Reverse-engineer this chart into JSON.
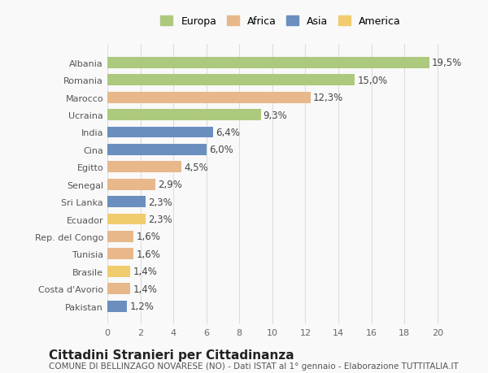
{
  "countries": [
    "Albania",
    "Romania",
    "Marocco",
    "Ucraina",
    "India",
    "Cina",
    "Egitto",
    "Senegal",
    "Sri Lanka",
    "Ecuador",
    "Rep. del Congo",
    "Tunisia",
    "Brasile",
    "Costa d'Avorio",
    "Pakistan"
  ],
  "values": [
    19.5,
    15.0,
    12.3,
    9.3,
    6.4,
    6.0,
    4.5,
    2.9,
    2.3,
    2.3,
    1.6,
    1.6,
    1.4,
    1.4,
    1.2
  ],
  "labels": [
    "19,5%",
    "15,0%",
    "12,3%",
    "9,3%",
    "6,4%",
    "6,0%",
    "4,5%",
    "2,9%",
    "2,3%",
    "2,3%",
    "1,6%",
    "1,6%",
    "1,4%",
    "1,4%",
    "1,2%"
  ],
  "continents": [
    "Europa",
    "Europa",
    "Africa",
    "Europa",
    "Asia",
    "Asia",
    "Africa",
    "Africa",
    "Asia",
    "America",
    "Africa",
    "Africa",
    "America",
    "Africa",
    "Asia"
  ],
  "continent_colors": {
    "Europa": "#adc97e",
    "Africa": "#e8b88a",
    "Asia": "#6a8fbf",
    "America": "#f0cc6e"
  },
  "legend_order": [
    "Europa",
    "Africa",
    "Asia",
    "America"
  ],
  "title": "Cittadini Stranieri per Cittadinanza",
  "subtitle": "COMUNE DI BELLINZAGO NOVARESE (NO) - Dati ISTAT al 1° gennaio - Elaborazione TUTTITALIA.IT",
  "xlim": [
    0,
    21
  ],
  "xticks": [
    0,
    2,
    4,
    6,
    8,
    10,
    12,
    14,
    16,
    18,
    20
  ],
  "background_color": "#f9f9f9",
  "grid_color": "#dddddd",
  "bar_height": 0.65,
  "label_fontsize": 8.5,
  "title_fontsize": 11,
  "subtitle_fontsize": 7.5,
  "tick_fontsize": 8,
  "legend_fontsize": 9
}
